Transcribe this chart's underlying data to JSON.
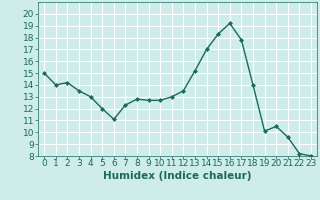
{
  "x": [
    0,
    1,
    2,
    3,
    4,
    5,
    6,
    7,
    8,
    9,
    10,
    11,
    12,
    13,
    14,
    15,
    16,
    17,
    18,
    19,
    20,
    21,
    22,
    23
  ],
  "y": [
    15,
    14,
    14.2,
    13.5,
    13,
    12,
    11.1,
    12.3,
    12.8,
    12.7,
    12.7,
    13,
    13.5,
    15.2,
    17,
    18.3,
    19.2,
    17.8,
    14,
    10.1,
    10.5,
    9.6,
    8.2,
    8
  ],
  "line_color": "#1a6b5a",
  "marker": "D",
  "marker_size": 2.0,
  "bg_color": "#ceecea",
  "grid_color": "#ffffff",
  "xlabel": "Humidex (Indice chaleur)",
  "ylim": [
    8,
    21
  ],
  "xlim": [
    -0.5,
    23.5
  ],
  "yticks": [
    8,
    9,
    10,
    11,
    12,
    13,
    14,
    15,
    16,
    17,
    18,
    19,
    20
  ],
  "xticks": [
    0,
    1,
    2,
    3,
    4,
    5,
    6,
    7,
    8,
    9,
    10,
    11,
    12,
    13,
    14,
    15,
    16,
    17,
    18,
    19,
    20,
    21,
    22,
    23
  ],
  "xlabel_fontsize": 7.5,
  "tick_fontsize": 6.5,
  "line_width": 1.0
}
